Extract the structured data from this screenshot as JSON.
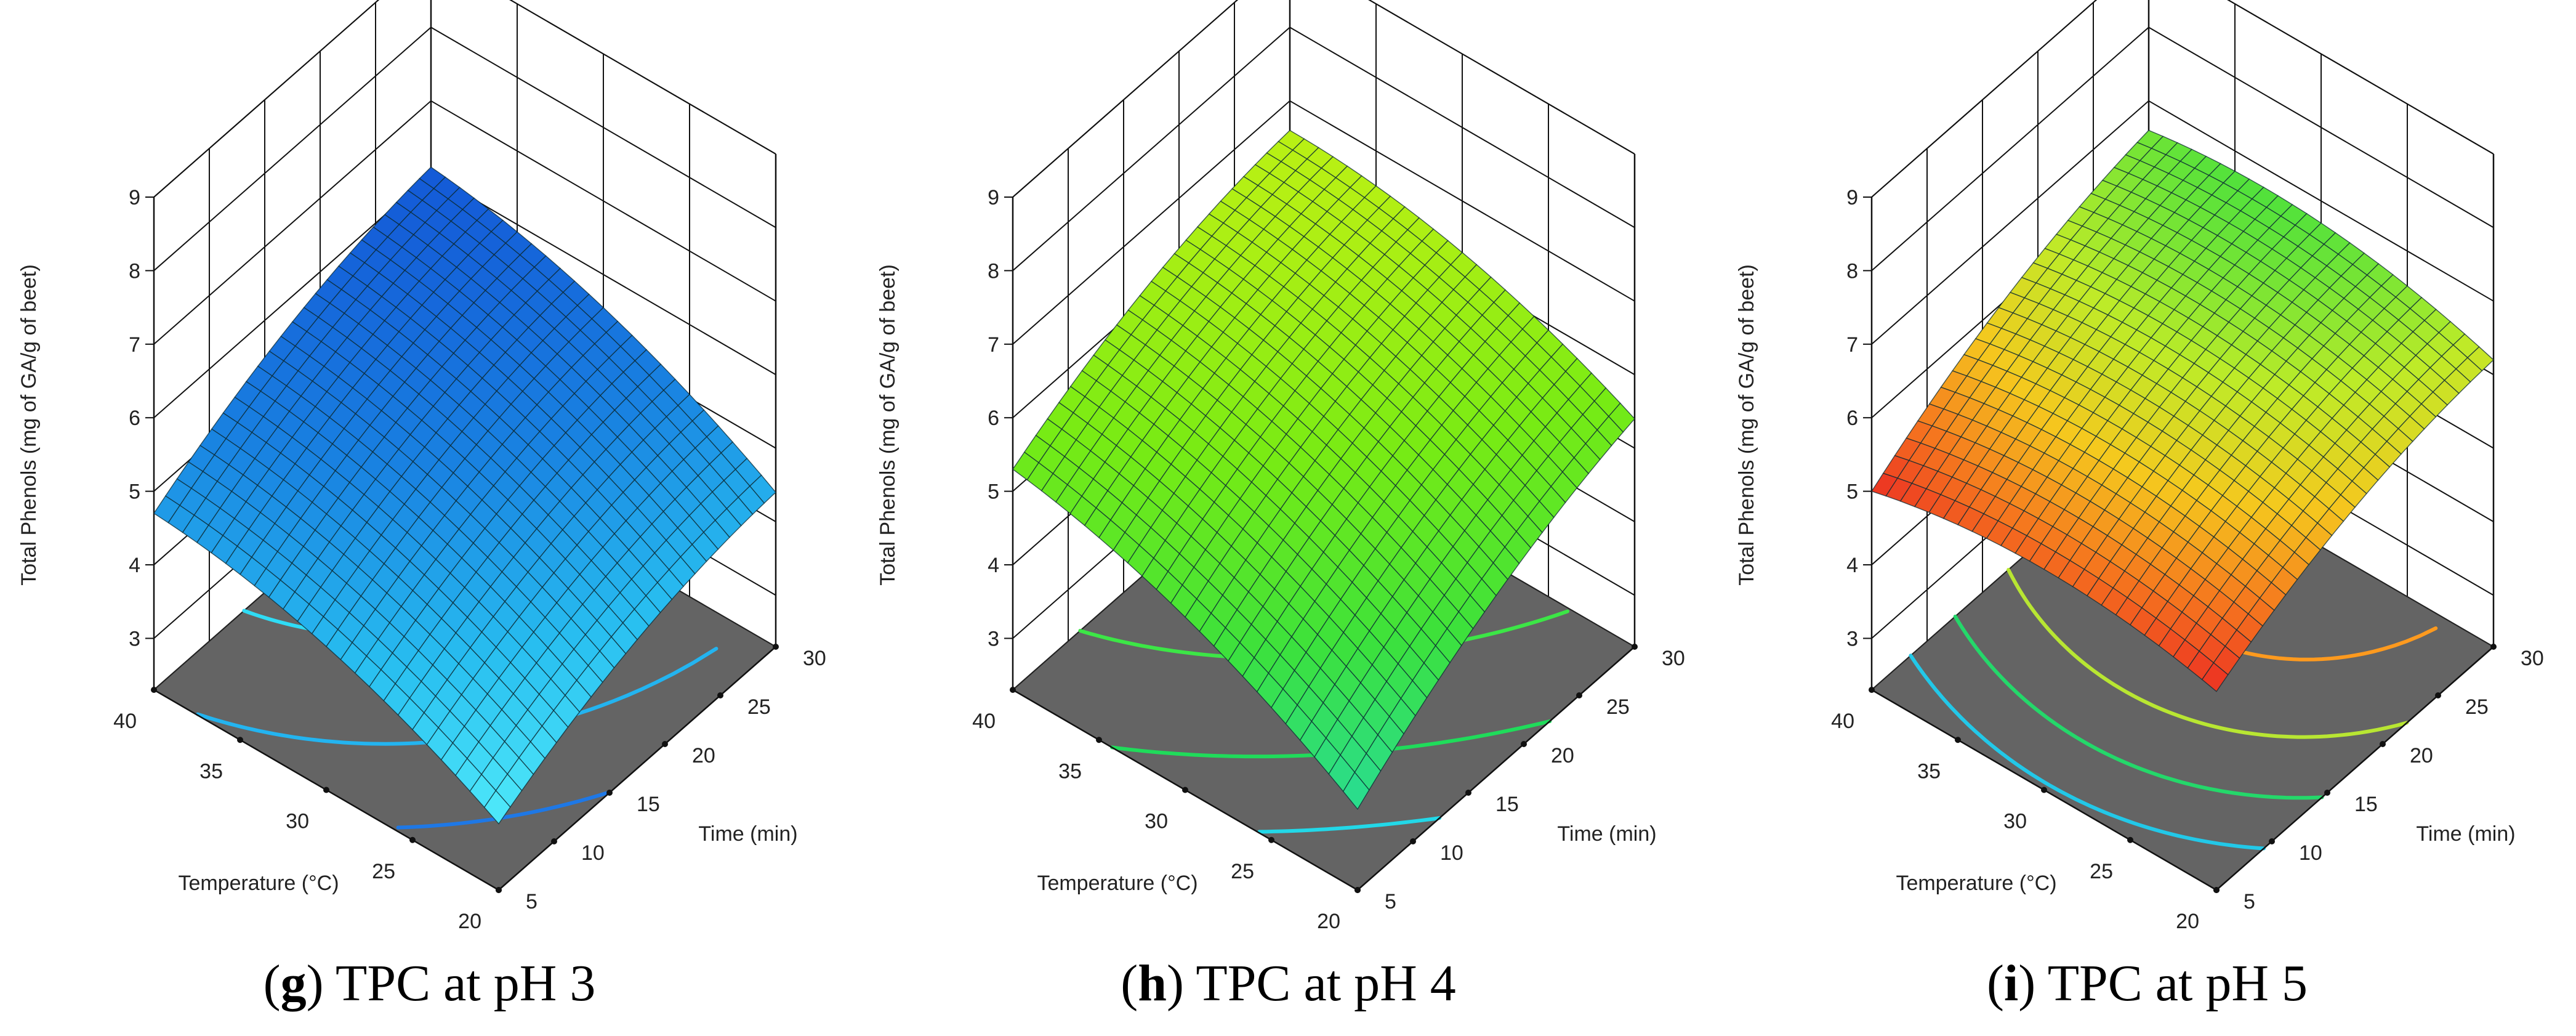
{
  "figure": {
    "panels": [
      {
        "letter": "g",
        "caption_text": ") TPC at pH 3",
        "colormap": "blue"
      },
      {
        "letter": "h",
        "caption_text": ") TPC at pH 4",
        "colormap": "green"
      },
      {
        "letter": "i",
        "caption_text": ") TPC at pH 5",
        "colormap": "warm"
      }
    ],
    "caption_open": "("
  },
  "chart_data": [
    {
      "type": "surface3d",
      "title": "(g) TPC at pH 3",
      "zlabel": "Total Phenols (mg of GA/g of beet)",
      "xlabel": "Temperature (°C)",
      "ylabel": "Time (min)",
      "x_ticks": [
        "20",
        "25",
        "30",
        "35",
        "40"
      ],
      "y_ticks": [
        "5",
        "10",
        "15",
        "20",
        "25",
        "30"
      ],
      "z_ticks": [
        "3",
        "4",
        "5",
        "6",
        "7",
        "8",
        "9"
      ],
      "xlim": [
        20,
        40
      ],
      "ylim": [
        5,
        30
      ],
      "zlim": [
        2.3,
        9
      ],
      "corner_values": {
        "T40_t5": 4.7,
        "T20_t5": 3.2,
        "T20_t30": 4.4,
        "T40_t30": 6.1
      },
      "contour_colors": [
        "#1e78e6",
        "#23b4f0",
        "#2fdcf5"
      ]
    },
    {
      "type": "surface3d",
      "title": "(h) TPC at pH 4",
      "zlabel": "Total Phenols (mg of GA/g of beet)",
      "xlabel": "Temperature (°C)",
      "ylabel": "Time (min)",
      "x_ticks": [
        "20",
        "25",
        "30",
        "35",
        "40"
      ],
      "y_ticks": [
        "5",
        "10",
        "15",
        "20",
        "25",
        "30"
      ],
      "z_ticks": [
        "3",
        "4",
        "5",
        "6",
        "7",
        "8",
        "9"
      ],
      "xlim": [
        20,
        40
      ],
      "ylim": [
        5,
        30
      ],
      "zlim": [
        2.3,
        9
      ],
      "corner_values": {
        "T40_t5": 5.3,
        "T20_t5": 3.4,
        "T20_t30": 5.4,
        "T40_t30": 6.6
      },
      "contour_colors": [
        "#22d8e8",
        "#1fdc5a",
        "#3ce646"
      ]
    },
    {
      "type": "surface3d",
      "title": "(i) TPC at pH 5",
      "zlabel": "Total Phenols (mg of GA/g of beet)",
      "xlabel": "Temperature (°C)",
      "ylabel": "Time (min)",
      "x_ticks": [
        "20",
        "25",
        "30",
        "35",
        "40"
      ],
      "y_ticks": [
        "5",
        "10",
        "15",
        "20",
        "25",
        "30"
      ],
      "z_ticks": [
        "3",
        "4",
        "5",
        "6",
        "7",
        "8",
        "9"
      ],
      "xlim": [
        20,
        40
      ],
      "ylim": [
        5,
        30
      ],
      "zlim": [
        2.3,
        9
      ],
      "corner_values": {
        "T40_t5": 5.0,
        "T20_t5": 5.0,
        "T20_t30": 6.2,
        "T40_t30": 6.6
      },
      "contour_colors": [
        "#22c8e8",
        "#24d86a",
        "#b8e632",
        "#ff9a1e"
      ]
    }
  ]
}
